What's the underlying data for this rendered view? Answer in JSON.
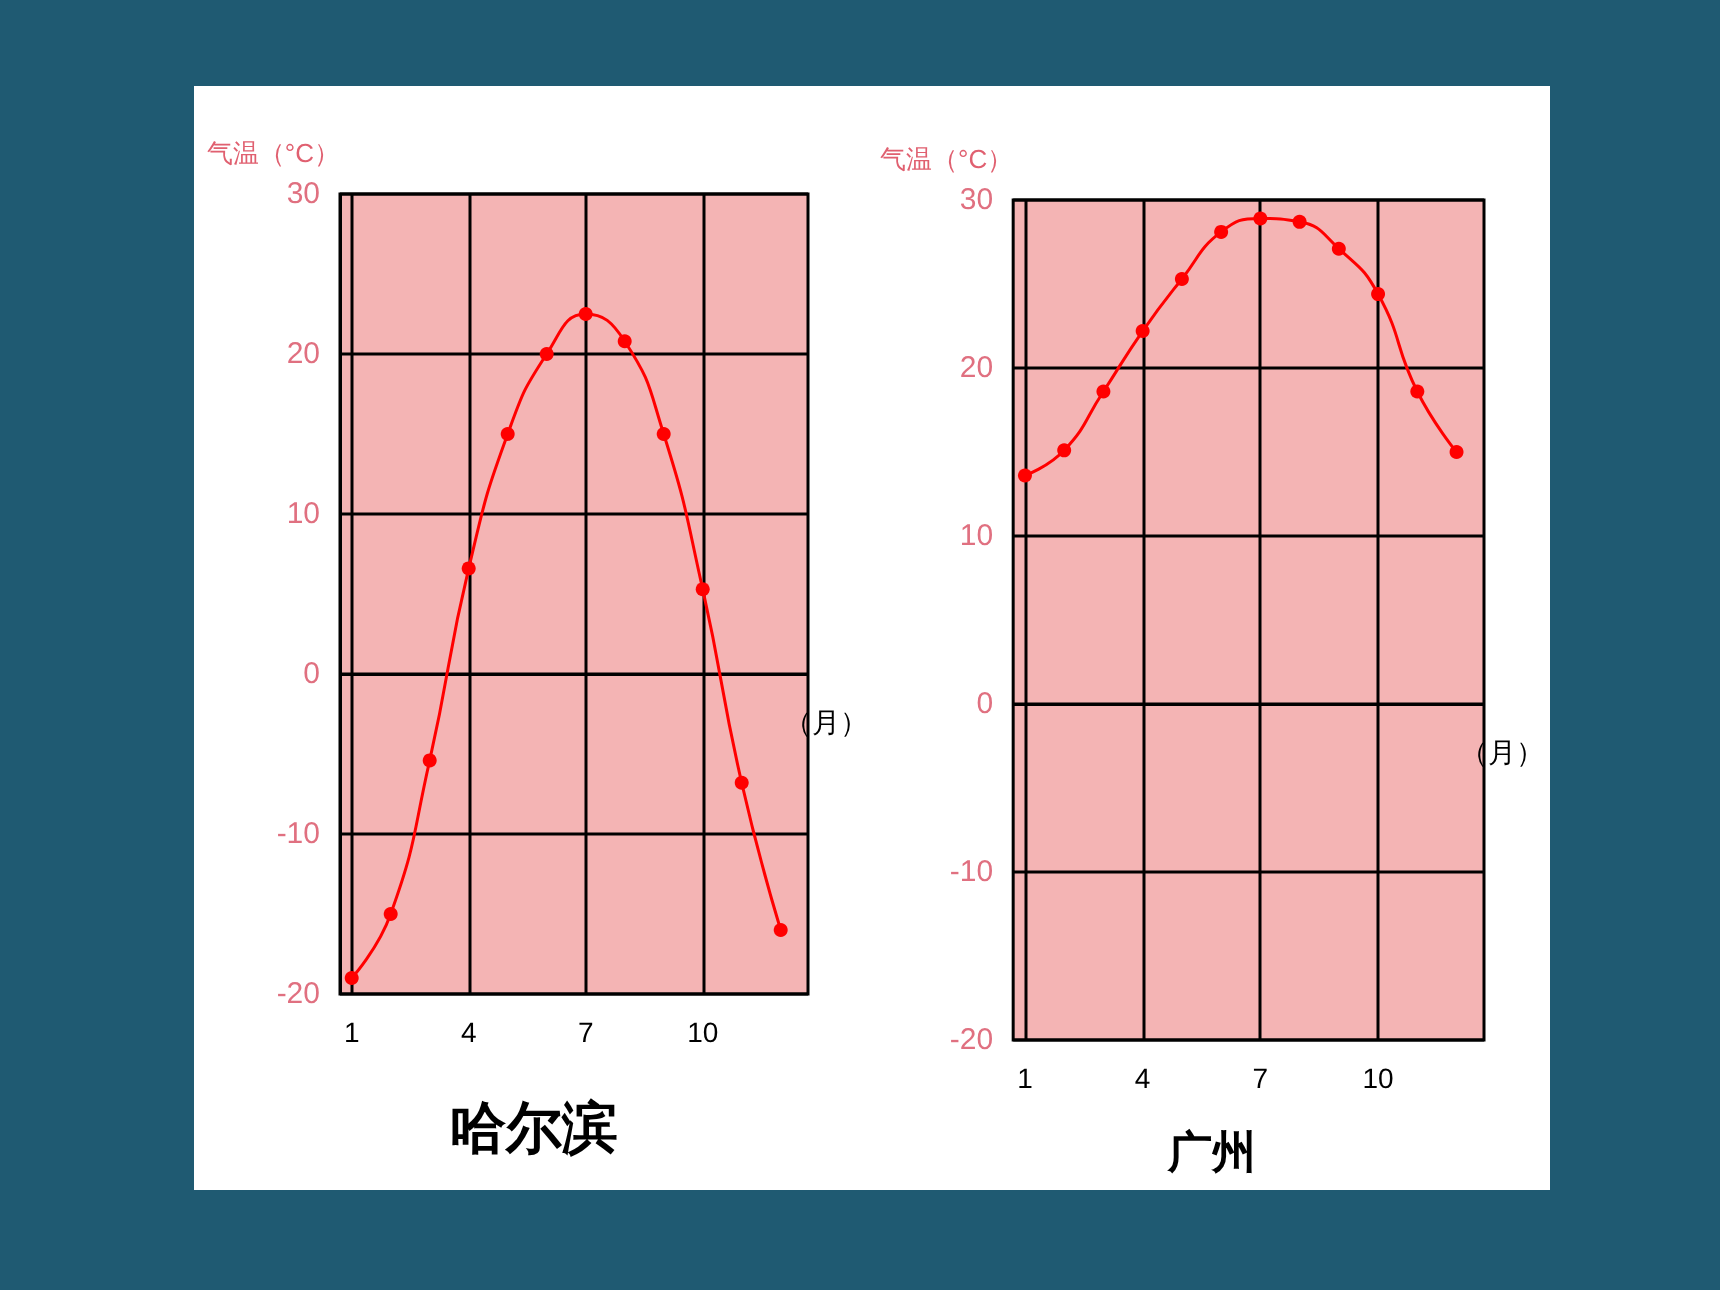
{
  "chart_data": [
    {
      "type": "line",
      "title": "哈尔滨",
      "ylabel": "气温（°C）",
      "xlabel": "（月）",
      "x": [
        1,
        2,
        3,
        4,
        5,
        6,
        7,
        8,
        9,
        10,
        11,
        12
      ],
      "series": [
        {
          "color": "#ff0000",
          "values": [
            -19,
            -15,
            -5.4,
            6.6,
            15,
            20,
            22.5,
            20.8,
            15,
            5.3,
            -6.8,
            -16
          ]
        }
      ],
      "xlim": [
        0.7,
        12.7
      ],
      "xticks": [
        1,
        4,
        7,
        10
      ],
      "ylim": [
        -20,
        30
      ],
      "yticks": [
        -20,
        -10,
        0,
        10,
        20,
        30
      ],
      "grid": true,
      "marker": "circle",
      "line_style": "solid"
    },
    {
      "type": "line",
      "title": "广州",
      "ylabel": "气温（°C）",
      "xlabel": "（月）",
      "x": [
        1,
        2,
        3,
        4,
        5,
        6,
        7,
        8,
        9,
        10,
        11,
        12
      ],
      "series": [
        {
          "color": "#ff0000",
          "values": [
            13.6,
            15.1,
            18.6,
            22.2,
            25.3,
            28.1,
            28.9,
            28.7,
            27.1,
            24.4,
            18.6,
            15
          ]
        }
      ],
      "xlim": [
        0.7,
        12.7
      ],
      "xticks": [
        1,
        4,
        7,
        10
      ],
      "ylim": [
        -20,
        30
      ],
      "yticks": [
        -20,
        -10,
        0,
        10,
        20,
        30
      ],
      "grid": true,
      "marker": "circle",
      "line_style": "solid"
    }
  ]
}
